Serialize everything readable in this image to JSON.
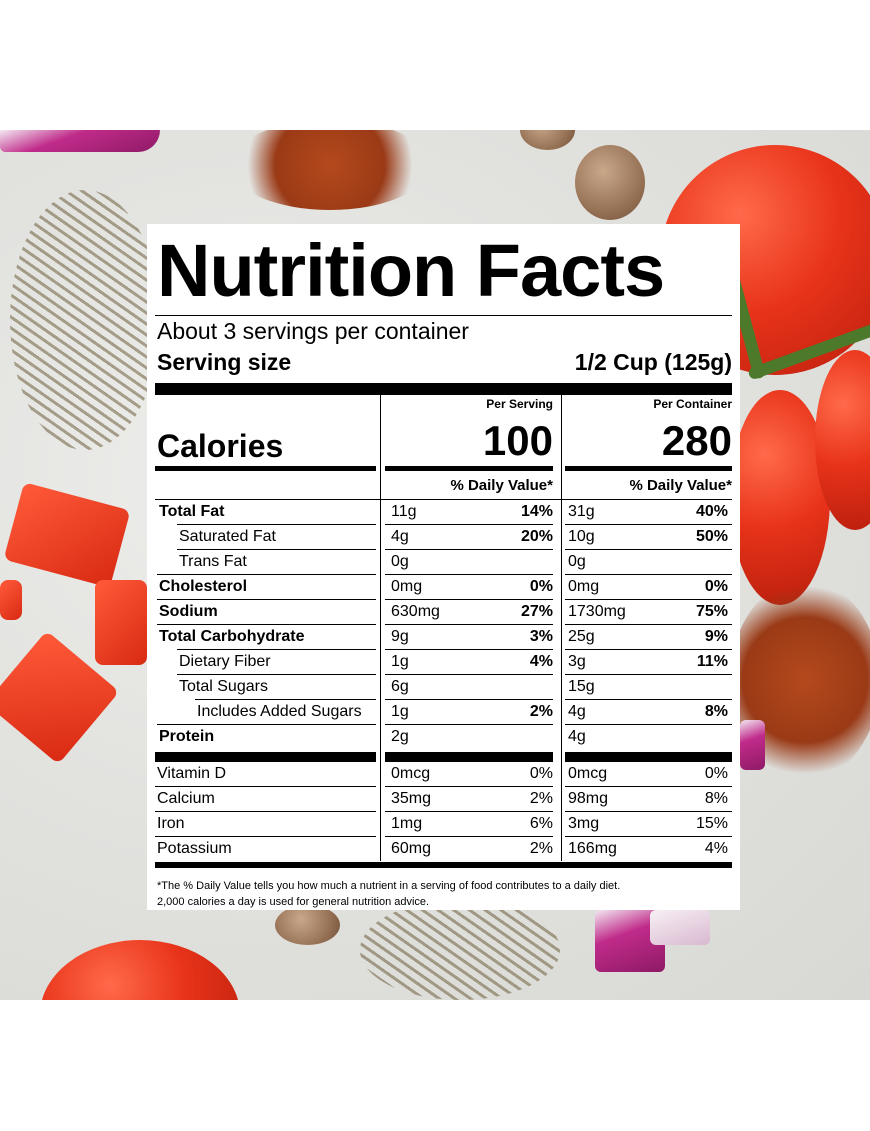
{
  "label": {
    "title": "Nutrition Facts",
    "servings": "About 3 servings per container",
    "serving_size_label": "Serving size",
    "serving_size_value": "1/2 Cup (125g)",
    "per_serving_label": "Per Serving",
    "per_container_label": "Per Container",
    "calories_label": "Calories",
    "calories_serving": "100",
    "calories_container": "280",
    "dv_header": "% Daily Value*",
    "nutrients": [
      {
        "name": "Total Fat",
        "bold": true,
        "indent": 0,
        "s_amt": "11g",
        "s_pct": "14%",
        "c_amt": "31g",
        "c_pct": "40%"
      },
      {
        "name": "Saturated Fat",
        "bold": false,
        "indent": 1,
        "s_amt": "4g",
        "s_pct": "20%",
        "c_amt": "10g",
        "c_pct": "50%"
      },
      {
        "name": "Trans Fat",
        "bold": false,
        "indent": 1,
        "s_amt": "0g",
        "s_pct": "",
        "c_amt": "0g",
        "c_pct": ""
      },
      {
        "name": "Cholesterol",
        "bold": true,
        "indent": 0,
        "s_amt": "0mg",
        "s_pct": "0%",
        "c_amt": "0mg",
        "c_pct": "0%"
      },
      {
        "name": "Sodium",
        "bold": true,
        "indent": 0,
        "s_amt": "630mg",
        "s_pct": "27%",
        "c_amt": "1730mg",
        "c_pct": "75%"
      },
      {
        "name": "Total Carbohydrate",
        "bold": true,
        "indent": 0,
        "s_amt": "9g",
        "s_pct": "3%",
        "c_amt": "25g",
        "c_pct": "9%"
      },
      {
        "name": "Dietary Fiber",
        "bold": false,
        "indent": 1,
        "s_amt": "1g",
        "s_pct": "4%",
        "c_amt": "3g",
        "c_pct": "11%"
      },
      {
        "name": "Total Sugars",
        "bold": false,
        "indent": 1,
        "s_amt": "6g",
        "s_pct": "",
        "c_amt": "15g",
        "c_pct": ""
      },
      {
        "name": "Includes Added Sugars",
        "bold": false,
        "indent": 2,
        "s_amt": "1g",
        "s_pct": "2%",
        "c_amt": "4g",
        "c_pct": "8%"
      },
      {
        "name": "Protein",
        "bold": true,
        "indent": 0,
        "s_amt": "2g",
        "s_pct": "",
        "c_amt": "4g",
        "c_pct": ""
      }
    ],
    "vitamins": [
      {
        "name": "Vitamin D",
        "s_amt": "0mcg",
        "s_pct": "0%",
        "c_amt": "0mcg",
        "c_pct": "0%"
      },
      {
        "name": "Calcium",
        "s_amt": "35mg",
        "s_pct": "2%",
        "c_amt": "98mg",
        "c_pct": "8%"
      },
      {
        "name": "Iron",
        "s_amt": "1mg",
        "s_pct": "6%",
        "c_amt": "3mg",
        "c_pct": "15%"
      },
      {
        "name": "Potassium",
        "s_amt": "60mg",
        "s_pct": "2%",
        "c_amt": "166mg",
        "c_pct": "4%"
      }
    ],
    "footnote_1": "*The % Daily Value tells you how much a nutrient in a serving of food contributes to a daily diet.",
    "footnote_2": "2,000 calories a day is used for general nutrition advice."
  },
  "background": {
    "tomato_color": "#e8331a",
    "spice_color": "#9a3a16",
    "onion_color": "#c02b8a",
    "label_color": "#ffffff"
  }
}
